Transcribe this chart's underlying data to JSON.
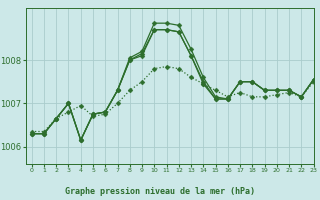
{
  "title": "Graphe pression niveau de la mer (hPa)",
  "bg_color": "#cce8e8",
  "grid_color": "#aacccc",
  "line_color": "#2d6e2d",
  "xlim": [
    -0.5,
    23
  ],
  "ylim": [
    1005.6,
    1009.2
  ],
  "yticks": [
    1006,
    1007,
    1008
  ],
  "xticks": [
    0,
    1,
    2,
    3,
    4,
    5,
    6,
    7,
    8,
    9,
    10,
    11,
    12,
    13,
    14,
    15,
    16,
    17,
    18,
    19,
    20,
    21,
    22,
    23
  ],
  "series_solid": [
    [
      1006.3,
      1006.3,
      1006.65,
      1007.0,
      1006.15,
      1006.75,
      1006.8,
      1007.3,
      1008.05,
      1008.2,
      1008.85,
      1008.85,
      1008.8,
      1008.25,
      1007.6,
      1007.15,
      1007.1,
      1007.5,
      1007.5,
      1007.3,
      1007.3,
      1007.3,
      1007.15,
      1007.55
    ],
    [
      1006.3,
      1006.3,
      1006.65,
      1007.0,
      1006.15,
      1006.75,
      1006.8,
      1007.3,
      1008.0,
      1008.15,
      1008.7,
      1008.7,
      1008.65,
      1008.1,
      1007.5,
      1007.1,
      1007.1,
      1007.5,
      1007.5,
      1007.3,
      1007.3,
      1007.3,
      1007.15,
      1007.55
    ],
    [
      1006.3,
      1006.3,
      1006.65,
      1007.0,
      1006.15,
      1006.75,
      1006.8,
      1007.3,
      1008.0,
      1008.1,
      1008.7,
      1008.7,
      1008.65,
      1008.1,
      1007.45,
      1007.1,
      1007.1,
      1007.5,
      1007.5,
      1007.3,
      1007.3,
      1007.3,
      1007.15,
      1007.55
    ]
  ],
  "series_dotted": [
    [
      1006.35,
      1006.35,
      1006.65,
      1006.8,
      1006.95,
      1006.7,
      1006.75,
      1007.0,
      1007.3,
      1007.5,
      1007.8,
      1007.85,
      1007.8,
      1007.6,
      1007.45,
      1007.3,
      1007.15,
      1007.25,
      1007.15,
      1007.15,
      1007.2,
      1007.25,
      1007.15,
      1007.5
    ]
  ],
  "marker_size": 2.5
}
